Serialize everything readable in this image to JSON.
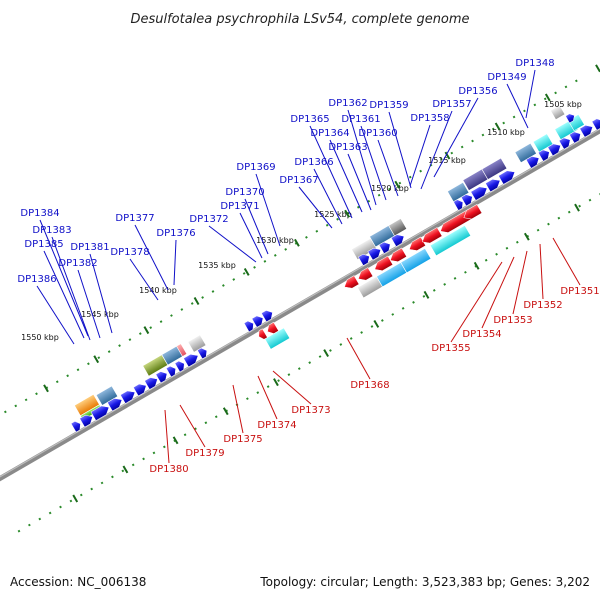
{
  "title": "Desulfotalea psychrophila LSv54, complete genome",
  "footer": {
    "accession": "Accession: NC_006138",
    "summary": "Topology: circular; Length: 3,523,383 bp; Genes: 3,202"
  },
  "colors": {
    "forward": "#1a1ae0",
    "reverse": "#e01020",
    "ruler_dots": "#2a8a2a",
    "backbone": "#8a8a8a",
    "label_blue": "#1010c8",
    "label_red": "#c81010"
  },
  "ruler_ticks": [
    "1505 kbp",
    "1510 kbp",
    "1515 kbp",
    "1520 kbp",
    "1525 kbp",
    "1530 kbp",
    "1535 kbp",
    "1540 kbp",
    "1545 kbp",
    "1550 kbp"
  ],
  "genes_upper": [
    "DP1348",
    "DP1349",
    "DP1356",
    "DP1357",
    "DP1358",
    "DP1359",
    "DP1360",
    "DP1361",
    "DP1362",
    "DP1363",
    "DP1364",
    "DP1365",
    "DP1366",
    "DP1367",
    "DP1369",
    "DP1370",
    "DP1371",
    "DP1372",
    "DP1376",
    "DP1377",
    "DP1378",
    "DP1381",
    "DP1382",
    "DP1383",
    "DP1384",
    "DP1385",
    "DP1386"
  ],
  "genes_lower": [
    "DP1351",
    "DP1352",
    "DP1353",
    "DP1354",
    "DP1355",
    "DP1368",
    "DP1373",
    "DP1374",
    "DP1375",
    "DP1379",
    "DP1380"
  ]
}
